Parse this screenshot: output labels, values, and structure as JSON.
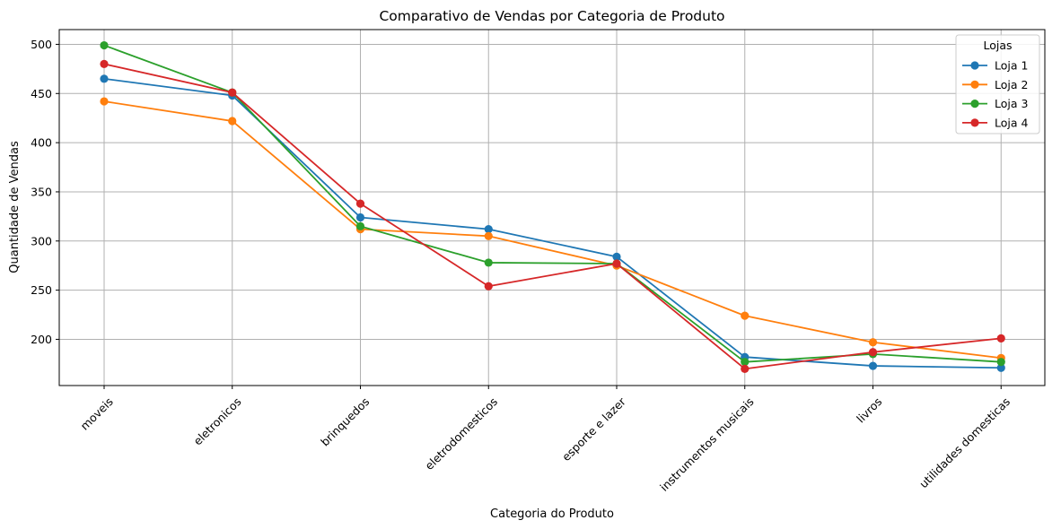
{
  "chart_data": {
    "type": "line",
    "title": "Comparativo de Vendas por Categoria de Produto",
    "xlabel": "Categoria do Produto",
    "ylabel": "Quantidade de Vendas",
    "categories": [
      "moveis",
      "eletronicos",
      "brinquedos",
      "eletrodomesticos",
      "esporte e lazer",
      "instrumentos musicais",
      "livros",
      "utilidades domesticas"
    ],
    "ylim": [
      153,
      515
    ],
    "yticks": [
      200,
      250,
      300,
      350,
      400,
      450,
      500
    ],
    "ytick_labels": [
      "200",
      "250",
      "300",
      "350",
      "400",
      "450",
      "500"
    ],
    "grid": true,
    "legend": {
      "title": "Lojas",
      "placement": "top-right"
    },
    "series": [
      {
        "name": "Loja 1",
        "color": "#1f77b4",
        "values": [
          465,
          448,
          324,
          312,
          284,
          182,
          173,
          171
        ]
      },
      {
        "name": "Loja 2",
        "color": "#ff7f0e",
        "values": [
          442,
          422,
          312,
          305,
          275,
          224,
          197,
          181
        ]
      },
      {
        "name": "Loja 3",
        "color": "#2ca02c",
        "values": [
          499,
          451,
          315,
          278,
          277,
          177,
          185,
          177
        ]
      },
      {
        "name": "Loja 4",
        "color": "#d62728",
        "values": [
          480,
          451,
          338,
          254,
          277,
          170,
          187,
          201
        ]
      }
    ]
  }
}
